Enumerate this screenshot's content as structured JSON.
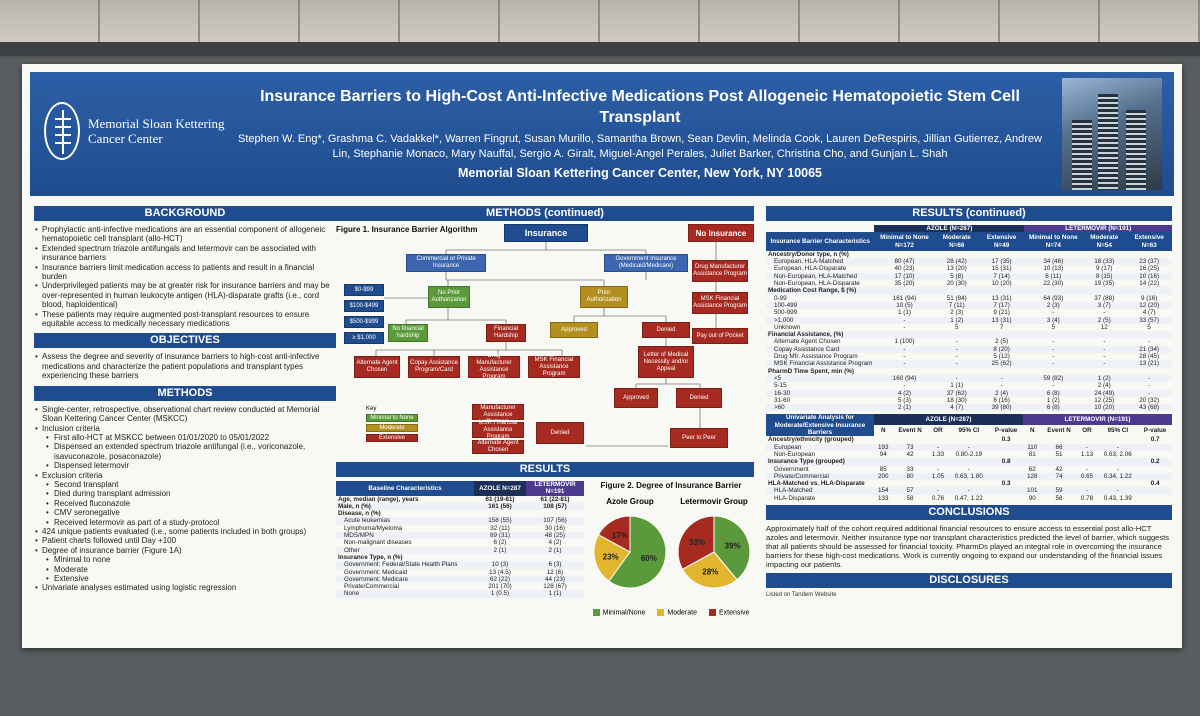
{
  "header": {
    "logo_line1": "Memorial Sloan Kettering",
    "logo_line2": "Cancer Center",
    "logo_year": "1884",
    "title": "Insurance Barriers to High-Cost Anti-Infective Medications Post Allogeneic Hematopoietic Stem Cell Transplant",
    "authors": "Stephen W. Eng*, Grashma C. Vadakkel*, Warren Fingrut, Susan Murillo, Samantha Brown, Sean Devlin, Melinda Cook, Lauren DeRespiris, Jillian Gutierrez, Andrew Lin, Stephanie Monaco, Mary Nauffal, Sergio A. Giralt, Miguel-Angel Perales, Juliet Barker, Christina Cho, and Gunjan L. Shah",
    "institution": "Memorial Sloan Kettering Cancer Center, New York, NY 10065"
  },
  "background": {
    "heading": "BACKGROUND",
    "items": [
      "Prophylactic anti-infective medications are an essential component of allogeneic hematopoietic cell transplant (allo-HCT)",
      "Extended spectrum triazole antifungals and letermovir can be associated with insurance barriers",
      "Insurance barriers limit medication access to patients and result in a financial burden",
      "Underprivileged patients may be at greater risk for insurance barriers and may be over-represented in human leukocyte antigen (HLA)-disparate grafts (i.e., cord blood, haploidentical)",
      "These patients may require augmented post-transplant resources to ensure equitable access to medically necessary medications"
    ]
  },
  "objectives": {
    "heading": "OBJECTIVES",
    "items": [
      "Assess the degree and severity of insurance barriers to high-cost anti-infective medications and characterize the patient populations and transplant types experiencing these barriers"
    ]
  },
  "methods": {
    "heading": "METHODS",
    "items": [
      {
        "t": "Single-center, retrospective, observational chart review conducted at Memorial Sloan Kettering Cancer Center (MSKCC)",
        "l": 0
      },
      {
        "t": "Inclusion criteria",
        "l": 0
      },
      {
        "t": "First allo-HCT at MSKCC between 01/01/2020 to 05/01/2022",
        "l": 1
      },
      {
        "t": "Dispensed an extended spectrum triazole antifungal (i.e., voriconazole, isavuconazole, posaconazole)",
        "l": 1
      },
      {
        "t": "Dispensed letermovir",
        "l": 1
      },
      {
        "t": "Exclusion criteria",
        "l": 0
      },
      {
        "t": "Second transplant",
        "l": 1
      },
      {
        "t": "Died during transplant admission",
        "l": 1
      },
      {
        "t": "Received fluconazole",
        "l": 1
      },
      {
        "t": "CMV seronegative",
        "l": 1
      },
      {
        "t": "Received letermovir as part of a study-protocol",
        "l": 1
      },
      {
        "t": "424 unique patients evaluated (i.e., some patients included in both groups)",
        "l": 0
      },
      {
        "t": "Patient charts followed until Day +100",
        "l": 0
      },
      {
        "t": "Degree of insurance barrier (Figure 1A)",
        "l": 0
      },
      {
        "t": "Minimal to none",
        "l": 1
      },
      {
        "t": "Moderate",
        "l": 1
      },
      {
        "t": "Extensive",
        "l": 1
      },
      {
        "t": "Univariate analyses estimated using logistic regression",
        "l": 0
      }
    ]
  },
  "methods_cont": {
    "heading": "METHODS (continued)",
    "fig_title": "Figure 1. Insurance Barrier Algorithm",
    "boxes": {
      "insurance": "Insurance",
      "no_insurance": "No Insurance",
      "commercial": "Commercial or Private Insurance",
      "government": "Government Insurance (Medicaid/Medicare)",
      "no_prior": "No Prior Authorization",
      "prior": "Prior Authorization",
      "d0": "$0-$99",
      "d1": "$100-$499",
      "d2": "$500-$999",
      "d3": "≥ $1,000",
      "no_fin": "No financial hardship",
      "fin": "Financial Hardship",
      "approved1": "Approved",
      "denied1": "Denied",
      "alt": "Alternate Agent Chosen",
      "copay": "Copay Assistance Program/Card",
      "dmap": "Drug Manufacturer Assistance Program",
      "mskfap": "MSK Financial Assistance Program",
      "lmn": "Letter of Medical Necessity and/or Appeal",
      "approved2": "Approved",
      "denied2": "Denied",
      "p2p": "Peer to Peer",
      "dmap_r": "Drug Manufacturer Assistance Program",
      "msk_r": "MSK Financial Assistance Program",
      "pay": "Pay out of Pocket",
      "s_dmap": "Drug Manufacturer Assistance Program",
      "s_msk": "MSK Financial Assistance Program",
      "s_alt": "Alternate Agent Chosen",
      "denied3": "Denied"
    },
    "key": {
      "title": "Key",
      "items": [
        "Minimal to None",
        "Moderate",
        "Extensive"
      ]
    }
  },
  "results": {
    "heading": "RESULTS",
    "baseline": {
      "h": [
        "Baseline Characteristics",
        "AZOLE N=287",
        "LETERMOVIR N=191"
      ],
      "rows": [
        {
          "k": "s",
          "c": [
            "Age, median (range), years",
            "61 (19-81)",
            "61 (22-81)"
          ]
        },
        {
          "k": "s",
          "c": [
            "Male, n (%)",
            "161 (56)",
            "108 (57)"
          ]
        },
        {
          "k": "s",
          "c": [
            "Disease, n (%)",
            "",
            ""
          ]
        },
        {
          "k": "i",
          "c": [
            "Acute leukemias",
            "158 (55)",
            "107 (56)"
          ]
        },
        {
          "k": "i",
          "c": [
            "Lymphoma/Myeloma",
            "32 (11)",
            "30 (16)"
          ]
        },
        {
          "k": "i",
          "c": [
            "MDS/MPN",
            "89 (31)",
            "48 (25)"
          ]
        },
        {
          "k": "i",
          "c": [
            "Non-malignant diseases",
            "6 (2)",
            "4 (2)"
          ]
        },
        {
          "k": "i",
          "c": [
            "Other",
            "2 (1)",
            "2 (1)"
          ]
        },
        {
          "k": "s",
          "c": [
            "Insurance Type, n (%)",
            "",
            ""
          ]
        },
        {
          "k": "i",
          "c": [
            "Government: Federal/State Health Plans",
            "10 (3)",
            "6 (3)"
          ]
        },
        {
          "k": "i",
          "c": [
            "Government: Medicaid",
            "13 (4.5)",
            "12 (6)"
          ]
        },
        {
          "k": "i",
          "c": [
            "Government: Medicare",
            "62 (22)",
            "44 (23)"
          ]
        },
        {
          "k": "i",
          "c": [
            "Private/Commercial",
            "201 (70)",
            "128 (67)"
          ]
        },
        {
          "k": "i",
          "c": [
            "None",
            "1 (0.5)",
            "1 (1)"
          ]
        }
      ]
    },
    "fig2_title": "Figure 2. Degree of Insurance Barrier",
    "pies": [
      {
        "title": "Azole Group",
        "slices": [
          {
            "label": "Minimal/None",
            "value": 60,
            "color": "#5b9a3a"
          },
          {
            "label": "Moderate",
            "value": 23,
            "color": "#e2b52f"
          },
          {
            "label": "Extensive",
            "value": 17,
            "color": "#a62a20"
          }
        ]
      },
      {
        "title": "Letermovir Group",
        "slices": [
          {
            "label": "Minimal/None",
            "value": 39,
            "color": "#5b9a3a"
          },
          {
            "label": "Moderate",
            "value": 28,
            "color": "#e2b52f"
          },
          {
            "label": "Extensive",
            "value": 33,
            "color": "#a62a20"
          }
        ]
      }
    ],
    "legend": [
      "Minimal/None",
      "Moderate",
      "Extensive"
    ]
  },
  "results_cont": {
    "heading": "RESULTS (continued)",
    "t1_groups": [
      "AZOLE (N=287)",
      "LETERMOVIR (N=191)"
    ],
    "t1_head": [
      "Insurance Barrier Characteristics",
      "Minimal to None N=172",
      "Moderate N=66",
      "Extensive N=49",
      "Minimal to None N=74",
      "Moderate N=54",
      "Extensive N=63"
    ],
    "t1_rows": [
      {
        "k": "s",
        "c": [
          "Ancestry/Donor type, n (%)",
          "",
          "",
          "",
          "",
          "",
          ""
        ]
      },
      {
        "k": "i",
        "c": [
          "European, HLA-Matched",
          "80 (47)",
          "28 (42)",
          "17 (35)",
          "34 (46)",
          "18 (33)",
          "23 (37)"
        ]
      },
      {
        "k": "i",
        "c": [
          "European, HLA-Disparate",
          "40 (23)",
          "13 (20)",
          "15 (31)",
          "10 (13)",
          "9 (17)",
          "16 (25)"
        ]
      },
      {
        "k": "i",
        "c": [
          "Non-European, HLA-Matched",
          "17 (10)",
          "5 (8)",
          "7 (14)",
          "8 (11)",
          "8 (15)",
          "10 (16)"
        ]
      },
      {
        "k": "i",
        "c": [
          "Non-European, HLA-Disparate",
          "35 (20)",
          "20 (30)",
          "10 (20)",
          "22 (30)",
          "19 (35)",
          "14 (22)"
        ]
      },
      {
        "k": "s",
        "c": [
          "Medication Cost Range, $ (%)",
          "",
          "",
          "",
          "",
          "",
          ""
        ]
      },
      {
        "k": "i",
        "c": [
          "0-99",
          "161 (94)",
          "51 (84)",
          "13 (31)",
          "64 (93)",
          "37 (88)",
          "9 (16)"
        ]
      },
      {
        "k": "i",
        "c": [
          "100-499",
          "10 (5)",
          "7 (11)",
          "7 (17)",
          "2 (3)",
          "3 (7)",
          "12 (20)"
        ]
      },
      {
        "k": "i",
        "c": [
          "500-999",
          "1 (1)",
          "2 (3)",
          "9 (21)",
          "-",
          "-",
          "4 (7)"
        ]
      },
      {
        "k": "i",
        "c": [
          ">1,000",
          "-",
          "1 (2)",
          "13 (31)",
          "3 (4)",
          "2 (5)",
          "33 (57)"
        ]
      },
      {
        "k": "i",
        "c": [
          "Unknown",
          "-",
          "5",
          "7",
          "5",
          "12",
          "5"
        ]
      },
      {
        "k": "s",
        "c": [
          "Financial Assistance, (%)",
          "",
          "",
          "",
          "",
          "",
          ""
        ]
      },
      {
        "k": "i",
        "c": [
          "Alternate Agent Chosen",
          "1 (100)",
          "-",
          "2 (5)",
          "-",
          "-",
          "-"
        ]
      },
      {
        "k": "i",
        "c": [
          "Copay Assistance Card",
          "-",
          "-",
          "8 (20)",
          "-",
          "-",
          "21 (34)"
        ]
      },
      {
        "k": "i",
        "c": [
          "Drug Mfr. Assistance Program",
          "-",
          "-",
          "5 (12)",
          "-",
          "-",
          "28 (45)"
        ]
      },
      {
        "k": "i",
        "c": [
          "MSK Financial Assistance Program",
          "-",
          "-",
          "25 (62)",
          "-",
          "-",
          "13 (21)"
        ]
      },
      {
        "k": "s",
        "c": [
          "PharmD Time Spent, min (%)",
          "",
          "",
          "",
          "",
          "",
          ""
        ]
      },
      {
        "k": "i",
        "c": [
          "<5",
          "160 (94)",
          "-",
          "-",
          "59 (82)",
          "1 (2)",
          "-"
        ]
      },
      {
        "k": "i",
        "c": [
          "5-15",
          "-",
          "1 (1)",
          "-",
          "-",
          "2 (4)",
          "-"
        ]
      },
      {
        "k": "i",
        "c": [
          "16-30",
          "4 (2)",
          "37 (62)",
          "2 (4)",
          "6 (8)",
          "24 (49)",
          "-"
        ]
      },
      {
        "k": "i",
        "c": [
          "31-60",
          "5 (3)",
          "18 (30)",
          "8 (16)",
          "1 (2)",
          "12 (25)",
          "20 (32)"
        ]
      },
      {
        "k": "i",
        "c": [
          ">60",
          "2 (1)",
          "4 (7)",
          "39 (80)",
          "6 (8)",
          "10 (20)",
          "43 (68)"
        ]
      }
    ],
    "t2_title": "Univariate Analysis for Moderate/Extensive Insurance Barriers",
    "t2_groups": [
      "AZOLE (N=287)",
      "LETERMOVIR (N=191)"
    ],
    "t2_head": [
      "",
      "N",
      "Event N",
      "OR",
      "95% CI",
      "P-value",
      "N",
      "Event N",
      "OR",
      "95% CI",
      "P-value"
    ],
    "t2_rows": [
      {
        "k": "s",
        "c": [
          "Ancestry/ethnicity (grouped)",
          "",
          "",
          "",
          "",
          "0.3",
          "",
          "",
          "",
          "",
          "0.7"
        ]
      },
      {
        "k": "i",
        "c": [
          "European",
          "193",
          "73",
          "-",
          "-",
          "",
          "110",
          "66",
          "-",
          "-",
          ""
        ]
      },
      {
        "k": "i",
        "c": [
          "Non-European",
          "94",
          "42",
          "1.33",
          "0.80-2.19",
          "",
          "81",
          "51",
          "1.13",
          "0.63, 2.06",
          ""
        ]
      },
      {
        "k": "s",
        "c": [
          "Insurance Type (grouped)",
          "",
          "",
          "",
          "",
          "0.8",
          "",
          "",
          "",
          "",
          "0.2"
        ]
      },
      {
        "k": "i",
        "c": [
          "Government",
          "85",
          "33",
          "-",
          "-",
          "",
          "62",
          "42",
          "-",
          "-",
          ""
        ]
      },
      {
        "k": "i",
        "c": [
          "Private/Commercial",
          "200",
          "80",
          "1.05",
          "0.63, 1.80",
          "",
          "128",
          "74",
          "0.65",
          "0.34, 1.22",
          ""
        ]
      },
      {
        "k": "s",
        "c": [
          "HLA-Matched vs. HLA-Disparate",
          "",
          "",
          "",
          "",
          "0.3",
          "",
          "",
          "",
          "",
          "0.4"
        ]
      },
      {
        "k": "i",
        "c": [
          "HLA-Matched",
          "154",
          "57",
          "-",
          "-",
          "",
          "101",
          "59",
          "-",
          "-",
          ""
        ]
      },
      {
        "k": "i",
        "c": [
          "HLA-Disparate",
          "133",
          "58",
          "0.76",
          "0.47, 1.22",
          "",
          "90",
          "58",
          "0.78",
          "0.43, 1.39",
          ""
        ]
      }
    ],
    "conclusions_heading": "CONCLUSIONS",
    "conclusions": "Approximately half of the cohort required additional financial resources to ensure access to essential post allo-HCT azoles and letermovir. Neither insurance type nor transplant characteristics predicted the level of barrier, which suggests that all patients should be assessed for financial toxicity. PharmDs played an integral role in overcoming the insurance barriers for these high-cost medications. Work is currently ongoing to expand our understanding of the financial issues impacting our patients.",
    "disclosures_heading": "DISCLOSURES",
    "disclosures": "Listed on Tandem Website"
  },
  "colors": {
    "brand": "#1f4c8e",
    "green": "#5b9a3a",
    "gold": "#e2b52f",
    "red": "#a62a20"
  }
}
